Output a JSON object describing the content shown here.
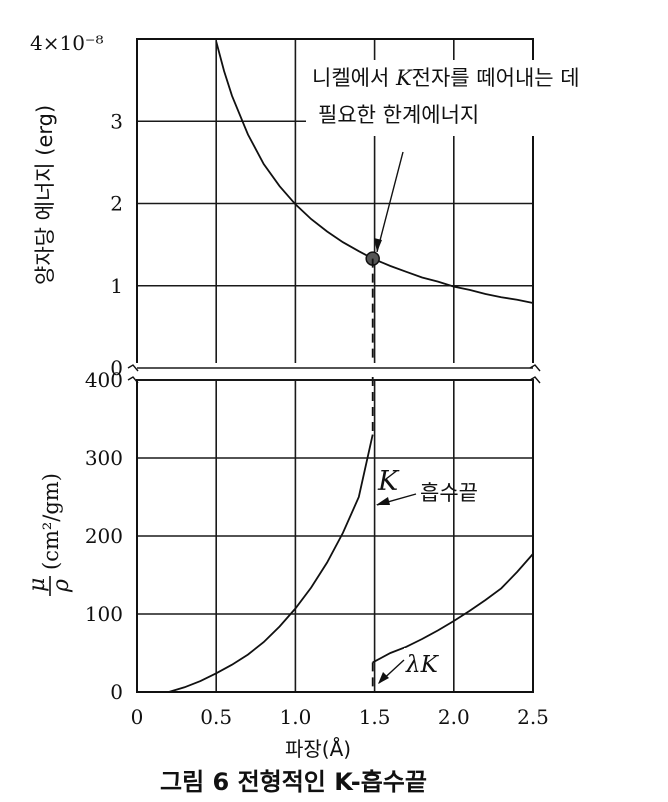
{
  "caption": "그림 6 전형적인 K-흡수끝",
  "colors": {
    "ink": "#111111",
    "background": "#ffffff",
    "marker": "#555555"
  },
  "chart_data": [
    {
      "type": "line",
      "panel": "top",
      "ylabel": "양자당 에너지 (erg)",
      "y_top_label": "4×10⁻⁸",
      "ylim": [
        0,
        4
      ],
      "xlim": [
        0,
        2.5
      ],
      "yticks": [
        "0",
        "1",
        "2",
        "3"
      ],
      "grid": true,
      "series": [
        {
          "x": [
            0.5,
            0.55,
            0.6,
            0.7,
            0.8,
            0.9,
            1.0,
            1.1,
            1.2,
            1.3,
            1.4,
            1.488,
            1.6,
            1.7,
            1.8,
            1.9,
            2.0,
            2.1,
            2.2,
            2.3,
            2.4,
            2.5
          ],
          "y": [
            3.97,
            3.61,
            3.31,
            2.84,
            2.48,
            2.21,
            1.99,
            1.81,
            1.66,
            1.53,
            1.42,
            1.33,
            1.24,
            1.17,
            1.1,
            1.05,
            0.99,
            0.95,
            0.9,
            0.86,
            0.83,
            0.79
          ]
        }
      ],
      "point": {
        "x": 1.488,
        "y": 1.33
      },
      "annotation": {
        "line1_pre": "니켈에서 ",
        "line1_k": "K",
        "line1_post": "전자를 떼어내는 데",
        "line2": "필요한 한계에너지"
      }
    },
    {
      "type": "line",
      "panel": "bottom",
      "ylabel_num": "μ",
      "ylabel_den": "ρ",
      "ylabel_unit": "(cm²/gm)",
      "ylim": [
        0,
        400
      ],
      "xlim": [
        0,
        2.5
      ],
      "yticks": [
        "0",
        "100",
        "200",
        "300",
        "400"
      ],
      "xticks": [
        "0",
        "0.5",
        "1.0",
        "1.5",
        "2.0",
        "2.5"
      ],
      "xlabel": "파장(Å)",
      "grid": true,
      "series": [
        {
          "x": [
            0.2,
            0.3,
            0.4,
            0.5,
            0.6,
            0.7,
            0.8,
            0.9,
            1.0,
            1.1,
            1.2,
            1.3,
            1.4,
            1.488
          ],
          "y": [
            0,
            6,
            14,
            24,
            35,
            48,
            64,
            84,
            107,
            134,
            166,
            204,
            250,
            330
          ]
        },
        {
          "x": [
            1.488,
            1.6,
            1.7,
            1.8,
            1.9,
            2.0,
            2.1,
            2.2,
            2.3,
            2.4,
            2.5
          ],
          "y": [
            38,
            50,
            58,
            68,
            79,
            91,
            104,
            118,
            133,
            154,
            177
          ]
        }
      ],
      "edge": {
        "x": 1.488
      },
      "edge_label": {
        "k": "K",
        "text": "흡수끝"
      },
      "lambda_label": {
        "lambda": "λ",
        "k": "K"
      }
    }
  ]
}
